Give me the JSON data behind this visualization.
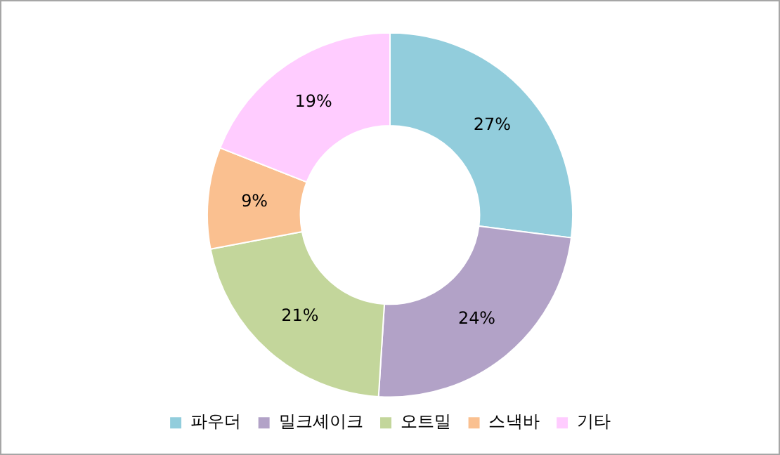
{
  "chart_data": {
    "type": "donut",
    "categories": [
      "파우더",
      "밀크셰이크",
      "오트밀",
      "스낵바",
      "기타"
    ],
    "values": [
      27,
      24,
      21,
      9,
      19
    ],
    "colors": [
      "#92cddc",
      "#b2a2c7",
      "#c3d69b",
      "#fac090",
      "#ffccff"
    ],
    "value_labels": [
      "27%",
      "24%",
      "21%",
      "9%",
      "19%"
    ],
    "legend": "bottom"
  }
}
